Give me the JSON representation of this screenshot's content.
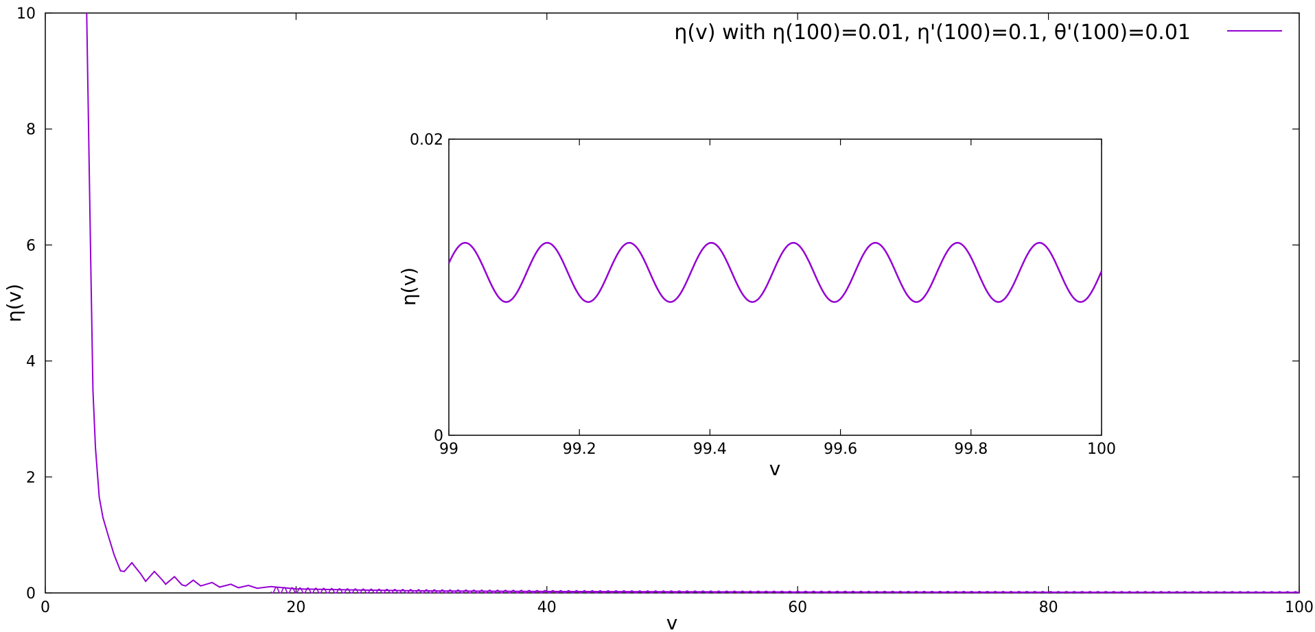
{
  "chart_data": [
    {
      "type": "line",
      "title": "",
      "xlabel": "v",
      "ylabel": "η(v)",
      "xlim": [
        0,
        100
      ],
      "ylim": [
        0,
        10
      ],
      "x_ticks": [
        "0",
        "20",
        "40",
        "60",
        "80",
        "100"
      ],
      "y_ticks": [
        "0",
        "2",
        "4",
        "6",
        "8",
        "10"
      ],
      "grid": false,
      "legend_position": "top-right",
      "series": [
        {
          "name": "η(v) with η(100)=0.01, η'(100)=0.1, θ'(100)=0.01",
          "color": "#9400d3",
          "points": [
            [
              3.3,
              10.0
            ],
            [
              3.6,
              6.0
            ],
            [
              3.8,
              3.5
            ],
            [
              4.0,
              2.5
            ],
            [
              4.3,
              1.65
            ],
            [
              4.6,
              1.3
            ],
            [
              5.0,
              1.0
            ],
            [
              5.5,
              0.65
            ],
            [
              6.0,
              0.38
            ],
            [
              6.3,
              0.37
            ],
            [
              6.9,
              0.52
            ],
            [
              7.6,
              0.33
            ],
            [
              8.0,
              0.2
            ],
            [
              8.7,
              0.37
            ],
            [
              9.3,
              0.23
            ],
            [
              9.6,
              0.15
            ],
            [
              10.3,
              0.28
            ],
            [
              10.9,
              0.14
            ],
            [
              11.2,
              0.12
            ],
            [
              11.8,
              0.22
            ],
            [
              12.4,
              0.12
            ],
            [
              13.3,
              0.18
            ],
            [
              13.9,
              0.1
            ],
            [
              14.8,
              0.15
            ],
            [
              15.4,
              0.09
            ],
            [
              16.2,
              0.13
            ],
            [
              16.9,
              0.08
            ],
            [
              18.0,
              0.11
            ],
            [
              20.0,
              0.07
            ],
            [
              25.0,
              0.05
            ],
            [
              30.0,
              0.035
            ],
            [
              40.0,
              0.025
            ],
            [
              60.0,
              0.015
            ],
            [
              80.0,
              0.012
            ],
            [
              100.0,
              0.01
            ]
          ]
        }
      ]
    },
    {
      "type": "line",
      "title": "",
      "xlabel": "v",
      "ylabel": "η(v)",
      "xlim": [
        99,
        100
      ],
      "ylim": [
        0,
        0.02
      ],
      "x_ticks": [
        "99",
        "99.2",
        "99.4",
        "99.6",
        "99.8",
        "100"
      ],
      "y_ticks": [
        "0",
        "0.02"
      ],
      "grid": false,
      "series": [
        {
          "color": "#9400d3",
          "center": 0.011,
          "amplitude": 0.002,
          "period": 0.1257,
          "first_peak_at": 99.025
        }
      ]
    }
  ]
}
